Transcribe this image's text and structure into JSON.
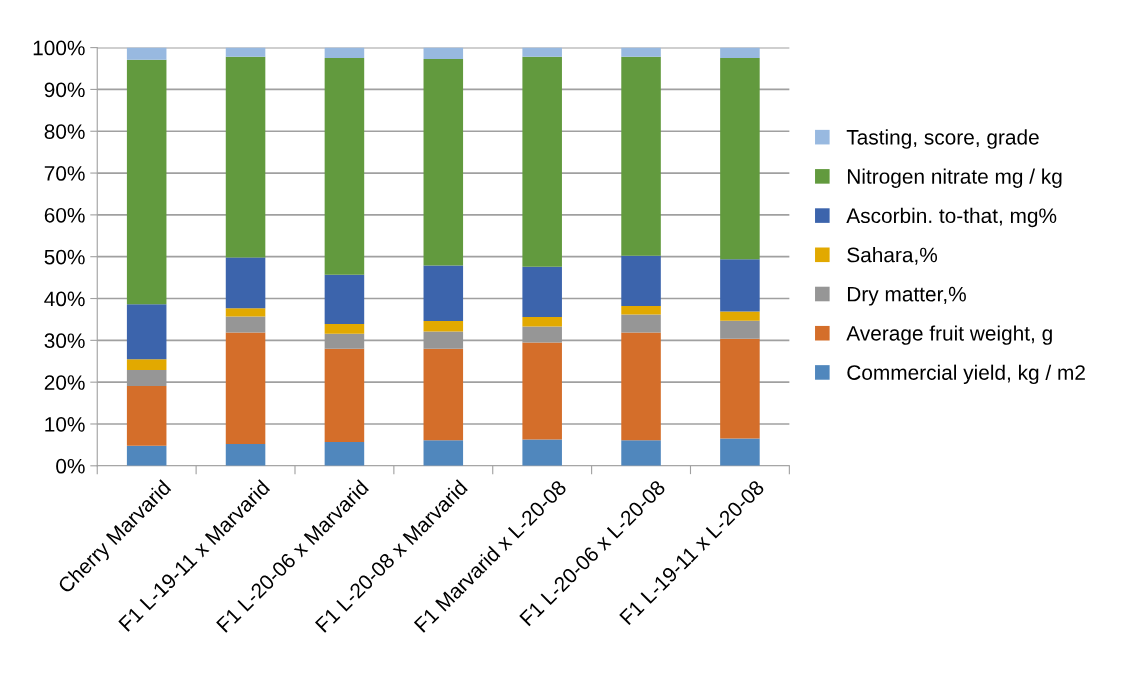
{
  "chart_data": {
    "type": "bar",
    "stacked": true,
    "categories": [
      "Cherry Marvarid",
      "F1 L-19-11 x Marvarid",
      "F1 L-20-06 x Marvarid",
      "F1 L-20-08 x Marvarid",
      "F1 Marvarid x L-20-08",
      "F1 L-20-06 x L-20-08",
      "F1 L-19-11 x L-20-08"
    ],
    "series": [
      {
        "name": "Commercial yield, kg / m2",
        "color": "#5087bd",
        "values": [
          4.8,
          5.2,
          5.7,
          6.1,
          6.3,
          6.1,
          6.5
        ]
      },
      {
        "name": "Average fruit weight, g",
        "color": "#d46e2a",
        "values": [
          14.3,
          26.7,
          22.3,
          21.9,
          23.2,
          25.8,
          23.9
        ]
      },
      {
        "name": "Dry matter,%",
        "color": "#969696",
        "values": [
          3.8,
          3.8,
          3.6,
          4.1,
          3.8,
          4.3,
          4.3
        ]
      },
      {
        "name": "Sahara,%",
        "color": "#e2a900",
        "values": [
          2.6,
          2.0,
          2.3,
          2.5,
          2.3,
          2.0,
          2.2
        ]
      },
      {
        "name": "Ascorbin. to-that, mg%",
        "color": "#3c64ac",
        "values": [
          13.1,
          12.1,
          11.8,
          13.3,
          12.0,
          12.0,
          12.5
        ]
      },
      {
        "name": "Nitrogen nitrate mg / kg",
        "color": "#629a3e",
        "values": [
          58.5,
          48.0,
          51.8,
          49.4,
          50.2,
          47.6,
          48.1
        ]
      },
      {
        "name": "Tasting, score, grade",
        "color": "#98b9e0",
        "values": [
          2.9,
          2.2,
          2.5,
          2.7,
          2.2,
          2.2,
          2.5
        ]
      }
    ],
    "ylim": [
      0,
      100
    ],
    "yticks": [
      {
        "value": 0,
        "label": "0%"
      },
      {
        "value": 10,
        "label": "10%"
      },
      {
        "value": 20,
        "label": "20%"
      },
      {
        "value": 30,
        "label": "30%"
      },
      {
        "value": 40,
        "label": "40%"
      },
      {
        "value": 50,
        "label": "50%"
      },
      {
        "value": 60,
        "label": "60%"
      },
      {
        "value": 70,
        "label": "70%"
      },
      {
        "value": 80,
        "label": "80%"
      },
      {
        "value": 90,
        "label": "90%"
      },
      {
        "value": 100,
        "label": "100%"
      }
    ],
    "grid": "y",
    "legend": "right"
  }
}
